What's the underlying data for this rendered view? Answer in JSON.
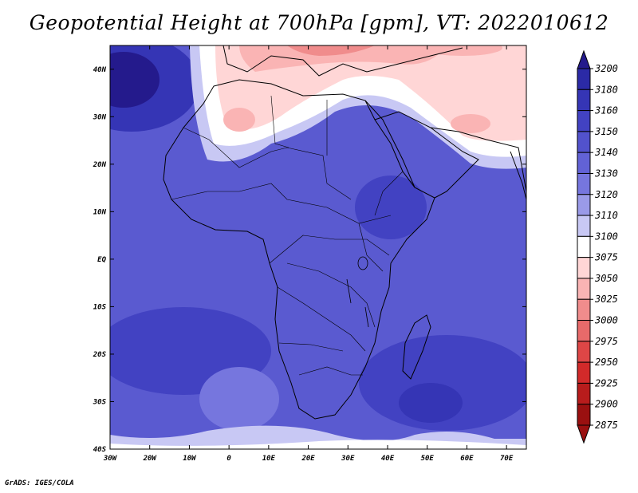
{
  "title": "Geopotential Height at 700hPa [gpm], VT: 2022010612",
  "credit": "GrADS: IGES/COLA",
  "map": {
    "lon_labels": [
      "30W",
      "20W",
      "10W",
      "0",
      "10E",
      "20E",
      "30E",
      "40E",
      "50E",
      "60E",
      "70E"
    ],
    "lat_labels": [
      "40N",
      "30N",
      "20N",
      "10N",
      "EQ",
      "10S",
      "20S",
      "30S",
      "40S"
    ],
    "lon_range": [
      -30,
      75
    ],
    "lat_range": [
      -40,
      45
    ]
  },
  "colorbar": {
    "levels": [
      "3200",
      "3180",
      "3160",
      "3150",
      "3140",
      "3130",
      "3120",
      "3110",
      "3100",
      "3075",
      "3050",
      "3025",
      "3000",
      "2975",
      "2950",
      "2925",
      "2900",
      "2875"
    ],
    "colors": [
      "#241a8c",
      "#2b2aa6",
      "#3535b5",
      "#4242c2",
      "#5252cc",
      "#6262d6",
      "#7676de",
      "#9a9ae8",
      "#c8c8f4",
      "#ffffff",
      "#ffd6d6",
      "#fab4b4",
      "#f08c8c",
      "#e86a6a",
      "#de4646",
      "#d22a2a",
      "#b81c1c",
      "#9a1010"
    ]
  }
}
